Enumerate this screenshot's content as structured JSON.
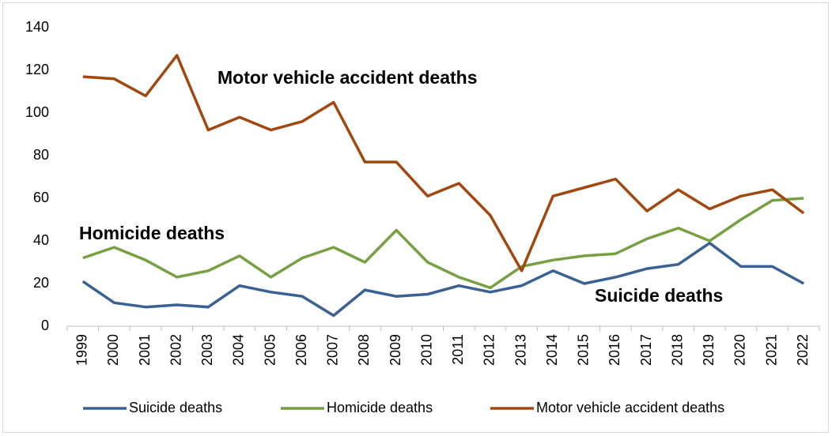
{
  "chart_data": {
    "type": "line",
    "categories": [
      "1999",
      "2000",
      "2001",
      "2002",
      "2003",
      "2004",
      "2005",
      "2006",
      "2007",
      "2008",
      "2009",
      "2010",
      "2011",
      "2012",
      "2013",
      "2014",
      "2015",
      "2016",
      "2017",
      "2018",
      "2019",
      "2020",
      "2021",
      "2022"
    ],
    "series": [
      {
        "name": "Suicide deaths",
        "color": "#3a6193",
        "values": [
          21,
          11,
          9,
          10,
          9,
          19,
          16,
          14,
          5,
          17,
          14,
          15,
          19,
          16,
          19,
          26,
          20,
          23,
          27,
          29,
          39,
          28,
          28,
          20
        ]
      },
      {
        "name": "Homicide deaths",
        "color": "#77a042",
        "values": [
          32,
          37,
          31,
          23,
          26,
          33,
          23,
          32,
          37,
          30,
          45,
          30,
          23,
          18,
          28,
          31,
          33,
          34,
          41,
          46,
          40,
          50,
          59,
          60
        ]
      },
      {
        "name": "Motor vehicle accident deaths",
        "color": "#a0480f",
        "values": [
          117,
          116,
          108,
          127,
          92,
          98,
          92,
          96,
          105,
          77,
          77,
          61,
          67,
          52,
          26,
          61,
          65,
          69,
          54,
          64,
          55,
          61,
          64,
          53
        ]
      }
    ],
    "annotations": [
      "Suicide deaths",
      "Homicide deaths",
      "Motor vehicle accident deaths"
    ],
    "ylim": [
      0,
      140
    ],
    "yticks": [
      0,
      20,
      40,
      60,
      80,
      100,
      120,
      140
    ],
    "legend": "bottom",
    "grid": false
  }
}
